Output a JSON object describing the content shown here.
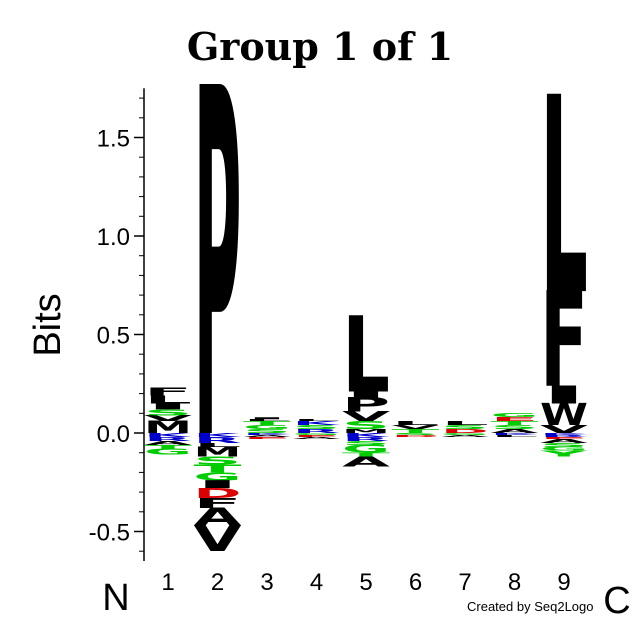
{
  "chart_data": {
    "type": "sequence-logo",
    "title": "Group 1 of 1",
    "ylabel": "Bits",
    "ylim": [
      -0.65,
      1.75
    ],
    "yticks": [
      "1.5",
      "1.0",
      "0.5",
      "0.0",
      "-0.5"
    ],
    "ytick_values": [
      1.5,
      1.0,
      0.5,
      0.0,
      -0.5
    ],
    "positions": [
      "1",
      "2",
      "3",
      "4",
      "5",
      "6",
      "7",
      "8",
      "9"
    ],
    "n_terminal_label": "N",
    "c_terminal_label": "C",
    "colors": {
      "hydrophobic": "#000000",
      "polar": "#00cc00",
      "basic": "#0000cc",
      "acidic": "#dd0000",
      "amide": "#800080"
    },
    "stacks": [
      {
        "position": "1",
        "positive": [
          {
            "letter": "M",
            "value": 0.06,
            "color": "#000000"
          },
          {
            "letter": "V",
            "value": 0.03,
            "color": "#000000"
          },
          {
            "letter": "S",
            "value": 0.03,
            "color": "#00cc00"
          },
          {
            "letter": "I",
            "value": 0.03,
            "color": "#000000"
          },
          {
            "letter": "L",
            "value": 0.04,
            "color": "#000000"
          },
          {
            "letter": "F",
            "value": 0.04,
            "color": "#000000"
          }
        ],
        "negative": [
          {
            "letter": "K",
            "value": 0.02,
            "color": "#0000cc"
          },
          {
            "letter": "R",
            "value": 0.02,
            "color": "#0000cc"
          },
          {
            "letter": "A",
            "value": 0.02,
            "color": "#000000"
          },
          {
            "letter": "T",
            "value": 0.02,
            "color": "#00cc00"
          },
          {
            "letter": "G",
            "value": 0.03,
            "color": "#00cc00"
          }
        ]
      },
      {
        "position": "2",
        "positive": [
          {
            "letter": "P",
            "value": 1.75,
            "color": "#000000"
          }
        ],
        "negative": [
          {
            "letter": "K",
            "value": 0.02,
            "color": "#0000cc"
          },
          {
            "letter": "R",
            "value": 0.03,
            "color": "#0000cc"
          },
          {
            "letter": "L",
            "value": 0.02,
            "color": "#000000"
          },
          {
            "letter": "M",
            "value": 0.05,
            "color": "#000000"
          },
          {
            "letter": "S",
            "value": 0.04,
            "color": "#00cc00"
          },
          {
            "letter": "T",
            "value": 0.04,
            "color": "#00cc00"
          },
          {
            "letter": "G",
            "value": 0.04,
            "color": "#00cc00"
          },
          {
            "letter": "I",
            "value": 0.04,
            "color": "#000000"
          },
          {
            "letter": "D",
            "value": 0.05,
            "color": "#dd0000"
          },
          {
            "letter": "F",
            "value": 0.05,
            "color": "#000000"
          },
          {
            "letter": "A",
            "value": 0.09,
            "color": "#000000"
          },
          {
            "letter": "V",
            "value": 0.13,
            "color": "#000000"
          }
        ]
      },
      {
        "position": "3",
        "positive": [
          {
            "letter": "S",
            "value": 0.02,
            "color": "#00cc00"
          },
          {
            "letter": "G",
            "value": 0.02,
            "color": "#00cc00"
          },
          {
            "letter": "T",
            "value": 0.02,
            "color": "#00cc00"
          },
          {
            "letter": "L",
            "value": 0.01,
            "color": "#000000"
          },
          {
            "letter": "I",
            "value": 0.01,
            "color": "#000000"
          }
        ],
        "negative": [
          {
            "letter": "K",
            "value": 0.01,
            "color": "#0000cc"
          },
          {
            "letter": "A",
            "value": 0.01,
            "color": "#000000"
          },
          {
            "letter": "E",
            "value": 0.01,
            "color": "#dd0000"
          }
        ]
      },
      {
        "position": "4",
        "positive": [
          {
            "letter": "R",
            "value": 0.02,
            "color": "#0000cc"
          },
          {
            "letter": "S",
            "value": 0.02,
            "color": "#00cc00"
          },
          {
            "letter": "K",
            "value": 0.02,
            "color": "#0000cc"
          },
          {
            "letter": "L",
            "value": 0.01,
            "color": "#000000"
          }
        ],
        "negative": [
          {
            "letter": "G",
            "value": 0.01,
            "color": "#00cc00"
          },
          {
            "letter": "E",
            "value": 0.01,
            "color": "#dd0000"
          },
          {
            "letter": "A",
            "value": 0.01,
            "color": "#000000"
          }
        ]
      },
      {
        "position": "5",
        "positive": [
          {
            "letter": "M",
            "value": 0.02,
            "color": "#000000"
          },
          {
            "letter": "S",
            "value": 0.04,
            "color": "#00cc00"
          },
          {
            "letter": "V",
            "value": 0.05,
            "color": "#000000"
          },
          {
            "letter": "P",
            "value": 0.07,
            "color": "#000000"
          },
          {
            "letter": "I",
            "value": 0.03,
            "color": "#000000"
          },
          {
            "letter": "L",
            "value": 0.38,
            "color": "#000000"
          }
        ],
        "negative": [
          {
            "letter": "K",
            "value": 0.02,
            "color": "#0000cc"
          },
          {
            "letter": "R",
            "value": 0.02,
            "color": "#0000cc"
          },
          {
            "letter": "S",
            "value": 0.02,
            "color": "#00cc00"
          },
          {
            "letter": "G",
            "value": 0.04,
            "color": "#00cc00"
          },
          {
            "letter": "T",
            "value": 0.02,
            "color": "#00cc00"
          },
          {
            "letter": "A",
            "value": 0.05,
            "color": "#000000"
          }
        ]
      },
      {
        "position": "6",
        "positive": [
          {
            "letter": "T",
            "value": 0.02,
            "color": "#00cc00"
          },
          {
            "letter": "V",
            "value": 0.02,
            "color": "#000000"
          },
          {
            "letter": "L",
            "value": 0.02,
            "color": "#000000"
          }
        ],
        "negative": [
          {
            "letter": "S",
            "value": 0.01,
            "color": "#00cc00"
          },
          {
            "letter": "D",
            "value": 0.01,
            "color": "#dd0000"
          }
        ]
      },
      {
        "position": "7",
        "positive": [
          {
            "letter": "D",
            "value": 0.02,
            "color": "#dd0000"
          },
          {
            "letter": "S",
            "value": 0.02,
            "color": "#00cc00"
          },
          {
            "letter": "L",
            "value": 0.02,
            "color": "#000000"
          }
        ],
        "negative": [
          {
            "letter": "G",
            "value": 0.01,
            "color": "#00cc00"
          },
          {
            "letter": "A",
            "value": 0.01,
            "color": "#000000"
          }
        ]
      },
      {
        "position": "8",
        "positive": [
          {
            "letter": "A",
            "value": 0.02,
            "color": "#000000"
          },
          {
            "letter": "S",
            "value": 0.02,
            "color": "#00cc00"
          },
          {
            "letter": "T",
            "value": 0.02,
            "color": "#00cc00"
          },
          {
            "letter": "E",
            "value": 0.02,
            "color": "#dd0000"
          },
          {
            "letter": "G",
            "value": 0.02,
            "color": "#00cc00"
          }
        ],
        "negative": [
          {
            "letter": "K",
            "value": 0.01,
            "color": "#0000cc"
          },
          {
            "letter": "L",
            "value": 0.01,
            "color": "#000000"
          }
        ]
      },
      {
        "position": "9",
        "positive": [
          {
            "letter": "V",
            "value": 0.04,
            "color": "#000000"
          },
          {
            "letter": "W",
            "value": 0.11,
            "color": "#000000"
          },
          {
            "letter": "I",
            "value": 0.09,
            "color": "#000000"
          },
          {
            "letter": "F",
            "value": 0.48,
            "color": "#000000"
          },
          {
            "letter": "L",
            "value": 0.99,
            "color": "#000000"
          }
        ],
        "negative": [
          {
            "letter": "K",
            "value": 0.01,
            "color": "#0000cc"
          },
          {
            "letter": "R",
            "value": 0.01,
            "color": "#0000cc"
          },
          {
            "letter": "E",
            "value": 0.01,
            "color": "#dd0000"
          },
          {
            "letter": "A",
            "value": 0.02,
            "color": "#000000"
          },
          {
            "letter": "S",
            "value": 0.02,
            "color": "#00cc00"
          },
          {
            "letter": "G",
            "value": 0.02,
            "color": "#00cc00"
          },
          {
            "letter": "Y",
            "value": 0.03,
            "color": "#00cc00"
          }
        ]
      }
    ]
  },
  "credit": "Created by Seq2Logo"
}
